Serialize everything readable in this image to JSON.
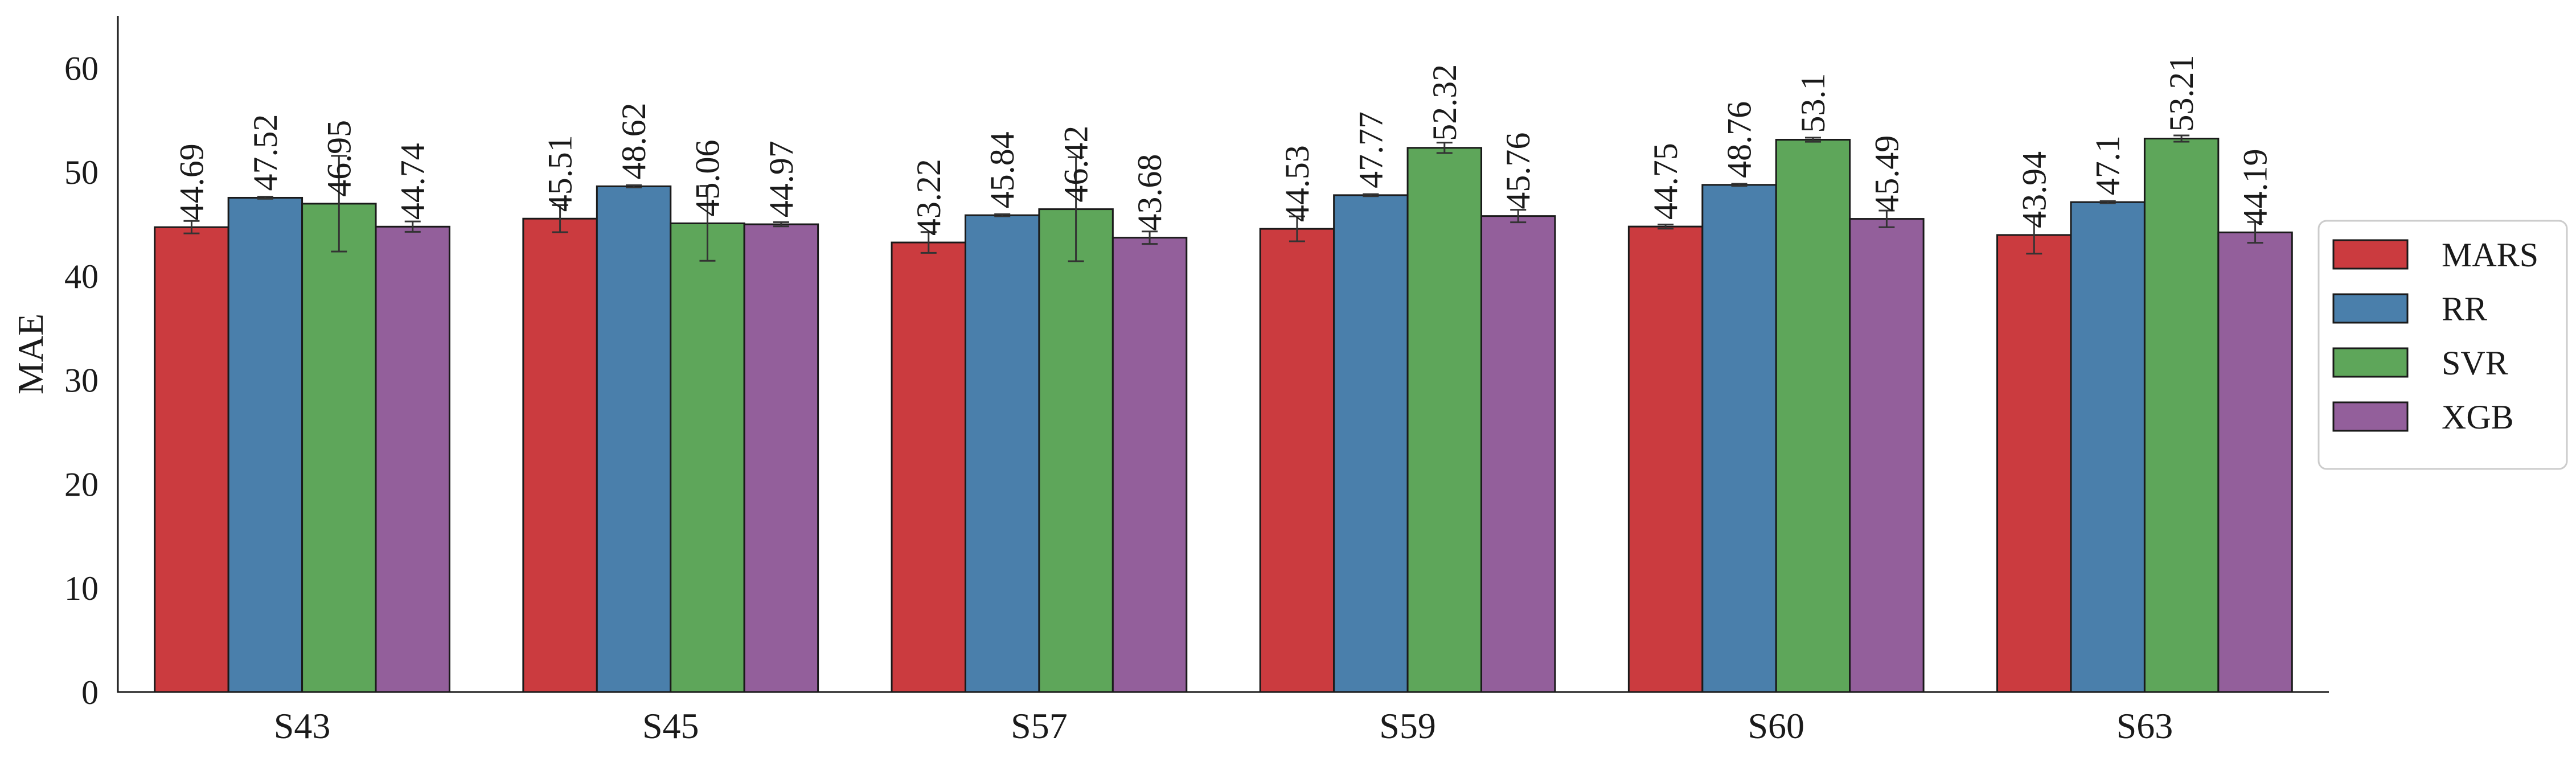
{
  "chart_data": {
    "type": "bar",
    "title": "",
    "xlabel": "",
    "ylabel": "MAE",
    "ylim": [
      0,
      65
    ],
    "yticks": [
      0,
      10,
      20,
      30,
      40,
      50,
      60
    ],
    "grid": false,
    "legend_position": "right",
    "categories": [
      "S43",
      "S45",
      "S57",
      "S59",
      "S60",
      "S63"
    ],
    "series": [
      {
        "name": "MARS",
        "color": "#cb3b3f",
        "values": [
          44.69,
          45.51,
          43.22,
          44.53,
          44.75,
          43.94
        ],
        "errors": [
          0.6,
          1.3,
          1.0,
          1.2,
          0.2,
          1.8
        ]
      },
      {
        "name": "RR",
        "color": "#4a7fab",
        "values": [
          47.52,
          48.62,
          45.84,
          47.77,
          48.76,
          47.1
        ],
        "errors": [
          0.1,
          0.1,
          0.1,
          0.1,
          0.1,
          0.1
        ]
      },
      {
        "name": "SVR",
        "color": "#5ea65a",
        "values": [
          46.95,
          45.06,
          46.42,
          52.32,
          53.1,
          53.21
        ],
        "errors": [
          4.6,
          3.6,
          5.0,
          0.5,
          0.2,
          0.3
        ]
      },
      {
        "name": "XGB",
        "color": "#935f9b",
        "values": [
          44.74,
          44.97,
          43.68,
          45.76,
          45.49,
          44.19
        ],
        "errors": [
          0.5,
          0.2,
          0.6,
          0.6,
          0.8,
          1.0
        ]
      }
    ]
  }
}
